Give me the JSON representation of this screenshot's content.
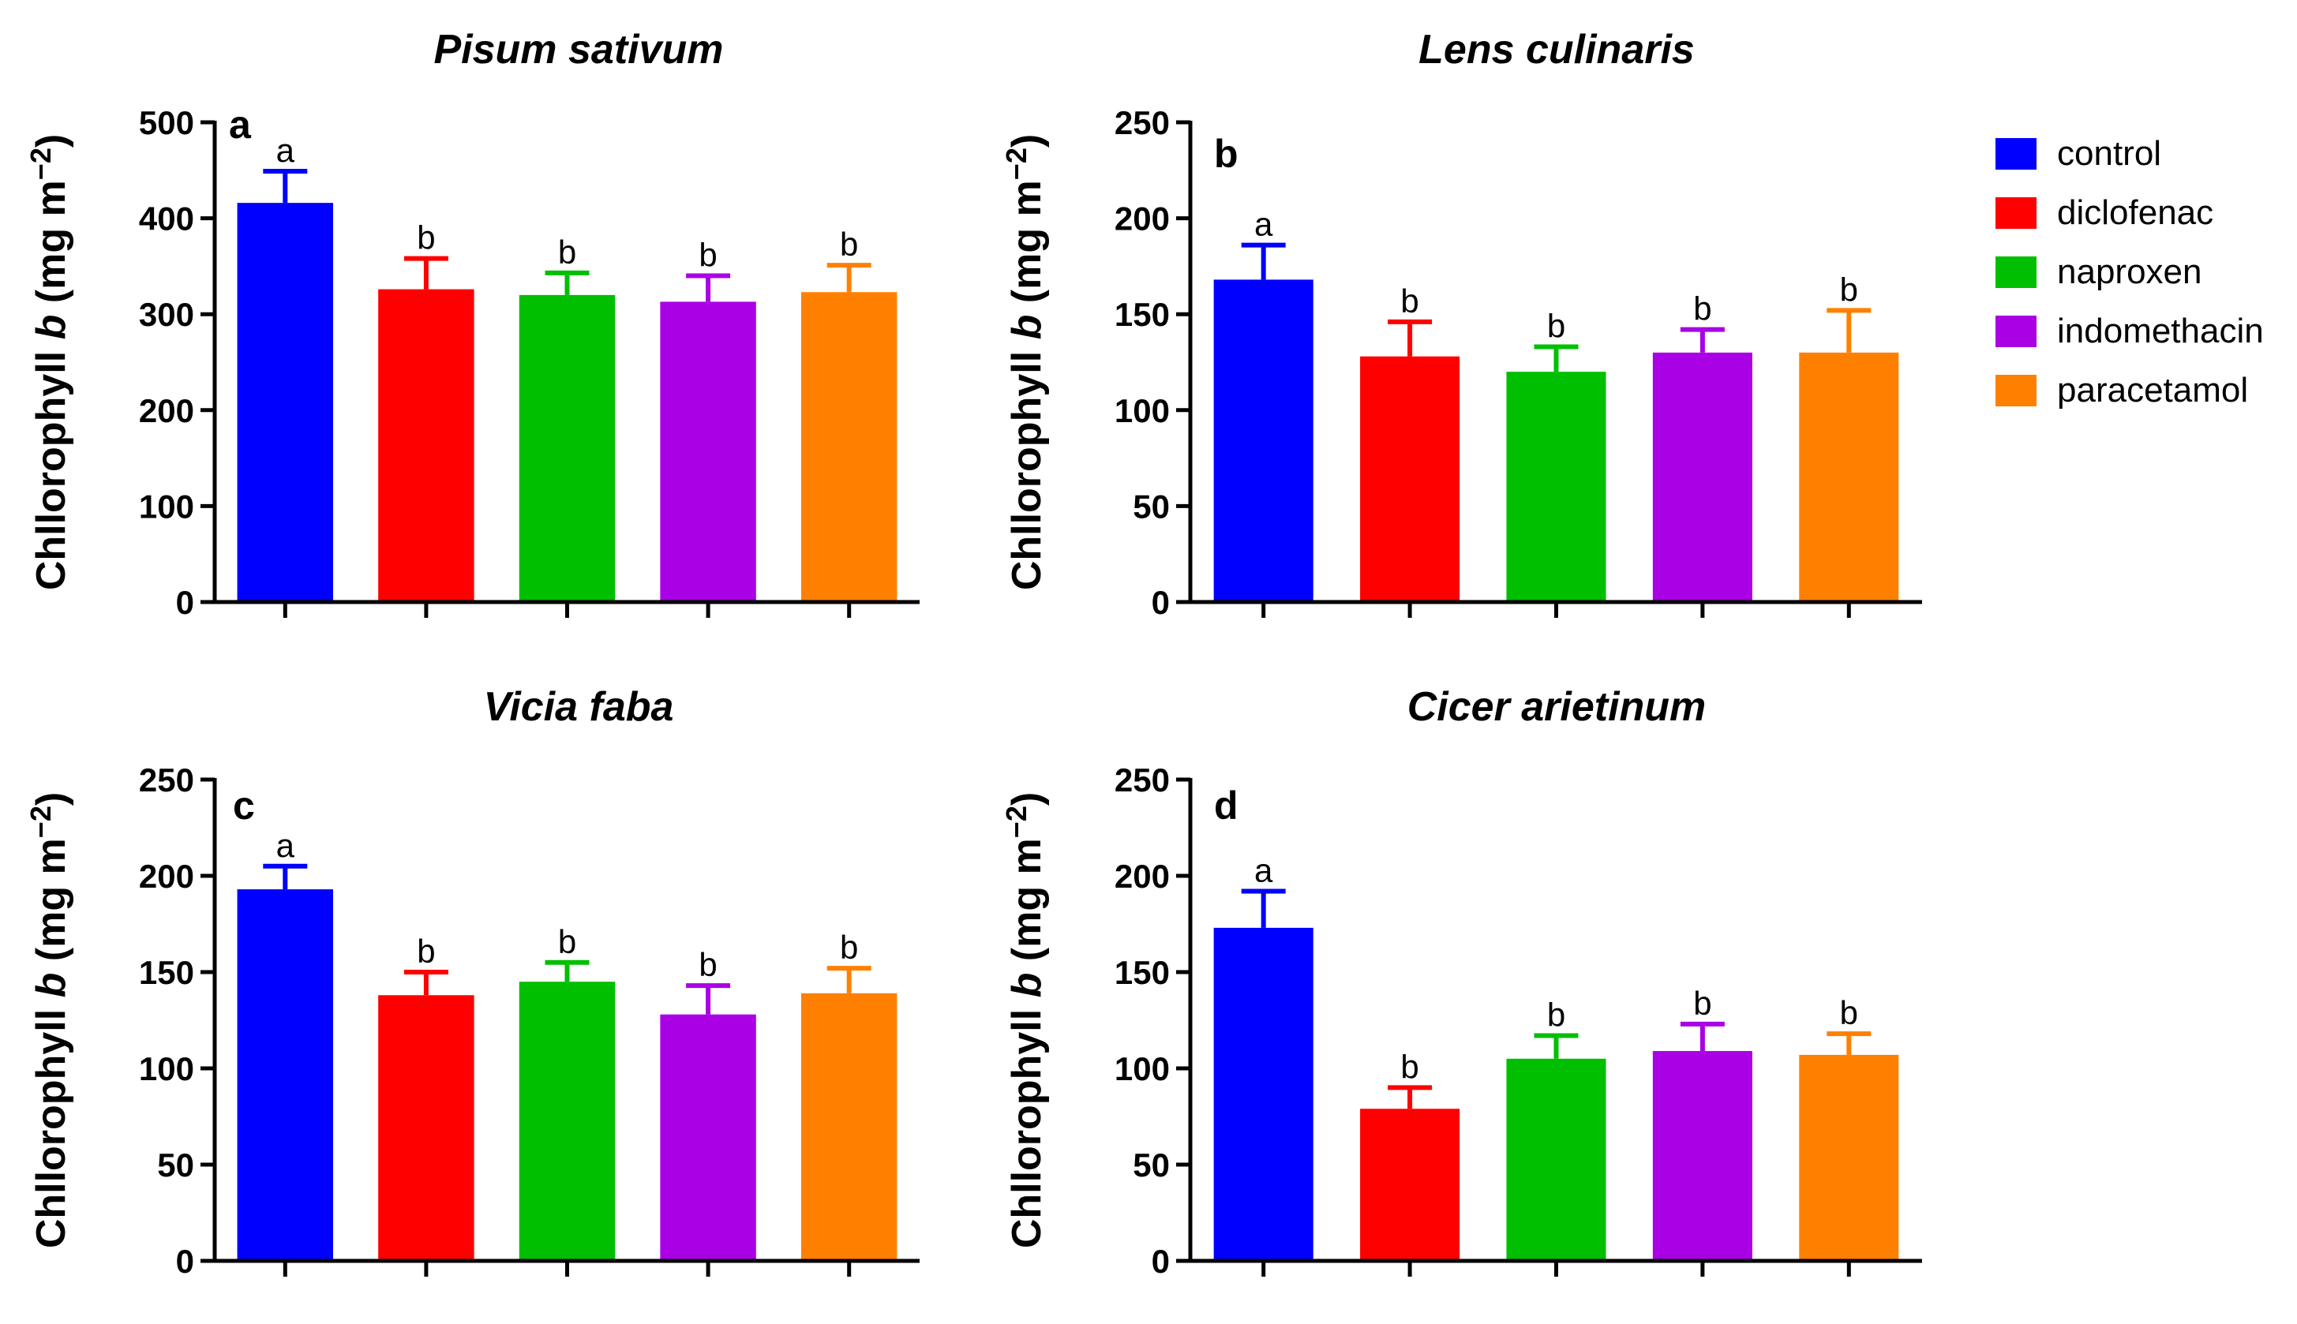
{
  "figure": {
    "title": ""
  },
  "legend": {
    "entries": [
      {
        "label": "control",
        "color": "#0000FF"
      },
      {
        "label": "diclofenac",
        "color": "#FF0000"
      },
      {
        "label": "naproxen",
        "color": "#00BF00"
      },
      {
        "label": "indomethacin",
        "color": "#AA00E6"
      },
      {
        "label": "paracetamol",
        "color": "#FF8000"
      }
    ]
  },
  "chart_data": [
    {
      "type": "bar",
      "panel": "a",
      "title": "Pisum sativum",
      "ylabel_prefix": "Chllorophyll ",
      "ylabel_italic": "b",
      "ylabel_suffix": " (mg m",
      "ylabel_sup": "−2",
      "ylabel_close": ")",
      "categories": [
        "control",
        "diclofenac",
        "naproxen",
        "indomethacin",
        "paracetamol"
      ],
      "values": [
        416,
        326,
        320,
        313,
        323
      ],
      "errors": [
        33,
        32,
        23,
        27,
        28
      ],
      "significance": [
        "a",
        "b",
        "b",
        "b",
        "b"
      ],
      "ylim": [
        0,
        500
      ],
      "yticks": [
        0,
        100,
        200,
        300,
        400,
        500
      ]
    },
    {
      "type": "bar",
      "panel": "b",
      "title": "Lens culinaris",
      "ylabel_prefix": "Chllorophyll ",
      "ylabel_italic": "b",
      "ylabel_suffix": " (mg m",
      "ylabel_sup": "−2",
      "ylabel_close": ")",
      "categories": [
        "control",
        "diclofenac",
        "naproxen",
        "indomethacin",
        "paracetamol"
      ],
      "values": [
        168,
        128,
        120,
        130,
        130
      ],
      "errors": [
        18,
        18,
        13,
        12,
        22
      ],
      "significance": [
        "a",
        "b",
        "b",
        "b",
        "b"
      ],
      "ylim": [
        0,
        250
      ],
      "yticks": [
        0,
        50,
        100,
        150,
        200,
        250
      ]
    },
    {
      "type": "bar",
      "panel": "c",
      "title": "Vicia faba",
      "ylabel_prefix": "Chllorophyll ",
      "ylabel_italic": "b",
      "ylabel_suffix": " (mg m",
      "ylabel_sup": "−2",
      "ylabel_close": ")",
      "categories": [
        "control",
        "diclofenac",
        "naproxen",
        "indomethacin",
        "paracetamol"
      ],
      "values": [
        193,
        138,
        145,
        128,
        139
      ],
      "errors": [
        12,
        12,
        10,
        15,
        13
      ],
      "significance": [
        "a",
        "b",
        "b",
        "b",
        "b"
      ],
      "ylim": [
        0,
        250
      ],
      "yticks": [
        0,
        50,
        100,
        150,
        200,
        250
      ]
    },
    {
      "type": "bar",
      "panel": "d",
      "title": "Cicer arietinum",
      "ylabel_prefix": "Chllorophyll ",
      "ylabel_italic": "b",
      "ylabel_suffix": " (mg m",
      "ylabel_sup": "−2",
      "ylabel_close": ")",
      "categories": [
        "control",
        "diclofenac",
        "naproxen",
        "indomethacin",
        "paracetamol"
      ],
      "values": [
        173,
        79,
        105,
        109,
        107
      ],
      "errors": [
        19,
        11,
        12,
        14,
        11
      ],
      "significance": [
        "a",
        "b",
        "b",
        "b",
        "b"
      ],
      "ylim": [
        0,
        250
      ],
      "yticks": [
        0,
        50,
        100,
        150,
        200,
        250
      ]
    }
  ]
}
